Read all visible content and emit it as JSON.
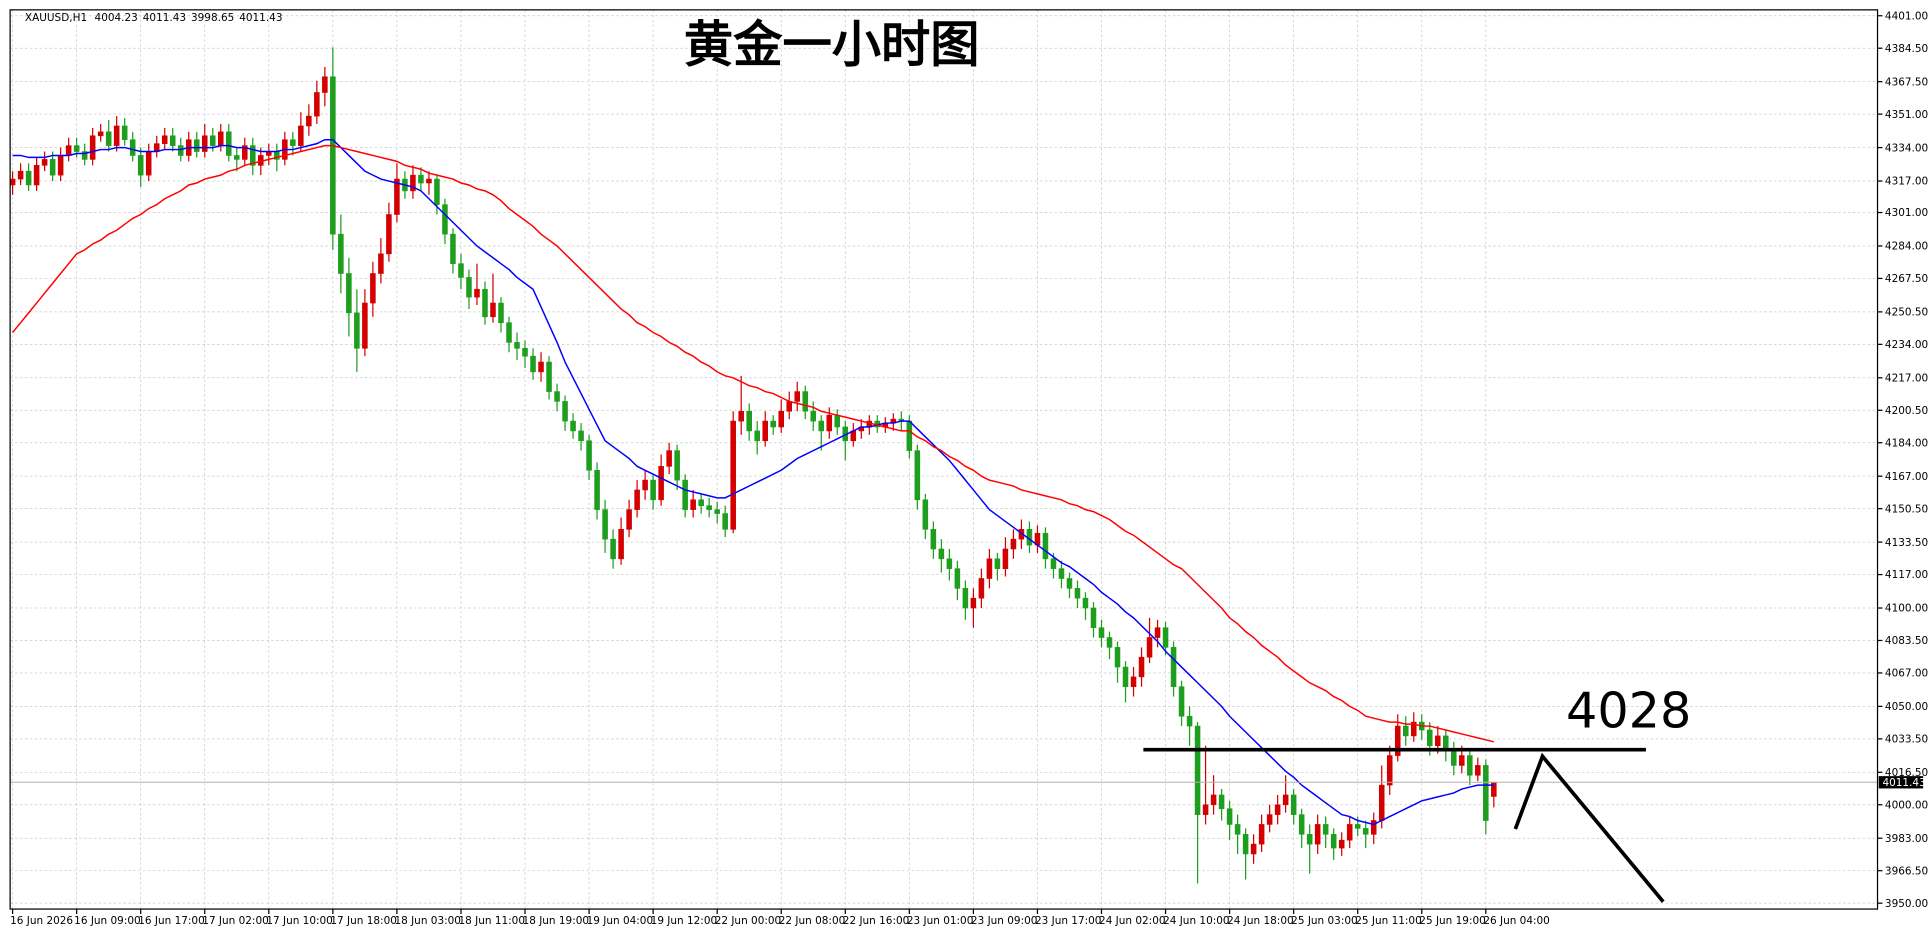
{
  "chart_data": {
    "type": "candlestick",
    "title": "黄金一小时图",
    "symbol": "XAUUSD,H1",
    "categories": [
      "16 Jun 2026",
      null,
      null,
      null,
      null,
      null,
      null,
      null,
      "16 Jun 09:00",
      null,
      null,
      null,
      null,
      null,
      null,
      null,
      "16 Jun 17:00",
      null,
      null,
      null,
      null,
      null,
      null,
      null,
      "17 Jun 02:00",
      null,
      null,
      null,
      null,
      null,
      null,
      null,
      "17 Jun 10:00",
      null,
      null,
      null,
      null,
      null,
      null,
      null,
      "17 Jun 18:00",
      null,
      null,
      null,
      null,
      null,
      null,
      null,
      "18 Jun 03:00",
      null,
      null,
      null,
      null,
      null,
      null,
      null,
      "18 Jun 11:00",
      null,
      null,
      null,
      null,
      null,
      null,
      null,
      "18 Jun 19:00",
      null,
      null,
      null,
      null,
      null,
      null,
      null,
      "19 Jun 04:00",
      null,
      null,
      null,
      null,
      null,
      null,
      null,
      "19 Jun 12:00",
      null,
      null,
      null,
      null,
      null,
      null,
      null,
      "22 Jun 00:00",
      null,
      null,
      null,
      null,
      null,
      null,
      null,
      "22 Jun 08:00",
      null,
      null,
      null,
      null,
      null,
      null,
      null,
      "22 Jun 16:00",
      null,
      null,
      null,
      null,
      null,
      null,
      null,
      "23 Jun 01:00",
      null,
      null,
      null,
      null,
      null,
      null,
      null,
      "23 Jun 09:00",
      null,
      null,
      null,
      null,
      null,
      null,
      null,
      "23 Jun 17:00",
      null,
      null,
      null,
      null,
      null,
      null,
      null,
      "24 Jun 02:00",
      null,
      null,
      null,
      null,
      null,
      null,
      null,
      "24 Jun 10:00",
      null,
      null,
      null,
      null,
      null,
      null,
      null,
      "24 Jun 18:00",
      null,
      null,
      null,
      null,
      null,
      null,
      null,
      "25 Jun 03:00",
      null,
      null,
      null,
      null,
      null,
      null,
      null,
      "25 Jun 11:00",
      null,
      null,
      null,
      null,
      null,
      null,
      null,
      "25 Jun 19:00",
      null,
      null,
      null,
      null,
      null,
      null,
      null,
      "26 Jun 04:00",
      null
    ],
    "open": [
      4315,
      4318,
      4322,
      4315,
      4325,
      4328,
      4320,
      4330,
      4335,
      4332,
      4328,
      4340,
      4342,
      4335,
      4345,
      4338,
      4330,
      4320,
      4332,
      4336,
      4340,
      4335,
      4330,
      4338,
      4332,
      4340,
      4335,
      4342,
      4330,
      4328,
      4335,
      4325,
      4330,
      4332,
      4328,
      4338,
      4335,
      4345,
      4350,
      4362,
      4370,
      4290,
      4270,
      4250,
      4232,
      4255,
      4270,
      4280,
      4300,
      4318,
      4312,
      4320,
      4316,
      4318,
      4305,
      4290,
      4275,
      4268,
      4258,
      4262,
      4248,
      4255,
      4245,
      4235,
      4232,
      4228,
      4220,
      4225,
      4210,
      4205,
      4195,
      4190,
      4185,
      4170,
      4150,
      4135,
      4125,
      4140,
      4150,
      4160,
      4165,
      4155,
      4172,
      4180,
      4165,
      4150,
      4155,
      4152,
      4150,
      4148,
      4140,
      4195,
      4200,
      4190,
      4185,
      4195,
      4192,
      4200,
      4205,
      4210,
      4200,
      4195,
      4190,
      4198,
      4192,
      4185,
      4190,
      4192,
      4195,
      4192,
      4194,
      4196,
      4195,
      4180,
      4155,
      4140,
      4130,
      4125,
      4120,
      4110,
      4100,
      4105,
      4115,
      4125,
      4120,
      4130,
      4135,
      4140,
      4132,
      4138,
      4125,
      4120,
      4115,
      4110,
      4105,
      4100,
      4090,
      4085,
      4080,
      4070,
      4060,
      4065,
      4075,
      4085,
      4090,
      4080,
      4060,
      4045,
      4040,
      3995,
      4000,
      4005,
      3998,
      3990,
      3985,
      3975,
      3980,
      3990,
      3995,
      4000,
      4005,
      3995,
      3985,
      3980,
      3990,
      3985,
      3978,
      3982,
      3990,
      3988,
      3985,
      3992,
      4010,
      4025,
      4040,
      4035,
      4042,
      4038,
      4030,
      4035,
      4028,
      4020,
      4025,
      4015,
      4020,
      4004.23
    ],
    "high": [
      4322,
      4326,
      4326,
      4329,
      4332,
      4332,
      4334,
      4339,
      4339,
      4336,
      4344,
      4346,
      4348,
      4350,
      4349,
      4342,
      4334,
      4336,
      4340,
      4344,
      4344,
      4339,
      4342,
      4342,
      4346,
      4344,
      4346,
      4346,
      4334,
      4339,
      4339,
      4334,
      4336,
      4336,
      4342,
      4342,
      4352,
      4356,
      4368,
      4375,
      4385,
      4300,
      4278,
      4262,
      4262,
      4276,
      4288,
      4306,
      4326,
      4322,
      4325,
      4324,
      4322,
      4320,
      4308,
      4293,
      4280,
      4272,
      4275,
      4266,
      4270,
      4258,
      4248,
      4240,
      4236,
      4232,
      4230,
      4228,
      4214,
      4208,
      4199,
      4194,
      4188,
      4174,
      4155,
      4140,
      4146,
      4155,
      4165,
      4170,
      4168,
      4178,
      4184,
      4183,
      4168,
      4160,
      4158,
      4156,
      4154,
      4152,
      4200,
      4218,
      4204,
      4195,
      4200,
      4198,
      4206,
      4210,
      4215,
      4213,
      4205,
      4198,
      4202,
      4201,
      4195,
      4194,
      4196,
      4198,
      4198,
      4197,
      4199,
      4200,
      4198,
      4183,
      4158,
      4144,
      4135,
      4130,
      4124,
      4114,
      4110,
      4120,
      4130,
      4128,
      4136,
      4140,
      4145,
      4144,
      4142,
      4141,
      4128,
      4124,
      4118,
      4114,
      4108,
      4103,
      4094,
      4088,
      4083,
      4073,
      4070,
      4080,
      4095,
      4094,
      4093,
      4083,
      4063,
      4050,
      4042,
      4030,
      4015,
      4008,
      4002,
      3995,
      3988,
      3985,
      3995,
      4000,
      4005,
      4015,
      4008,
      3998,
      3990,
      3995,
      3994,
      3988,
      3986,
      3994,
      3994,
      3992,
      3996,
      4020,
      4030,
      4046,
      4045,
      4047,
      4046,
      4042,
      4040,
      4038,
      4032,
      4030,
      4028,
      4024,
      4023,
      4011.43
    ],
    "low": [
      4310,
      4315,
      4312,
      4312,
      4322,
      4317,
      4317,
      4327,
      4329,
      4325,
      4325,
      4337,
      4332,
      4332,
      4335,
      4327,
      4314,
      4317,
      4329,
      4333,
      4332,
      4327,
      4327,
      4329,
      4329,
      4332,
      4332,
      4327,
      4322,
      4325,
      4320,
      4320,
      4325,
      4322,
      4325,
      4330,
      4332,
      4340,
      4346,
      4355,
      4282,
      4260,
      4238,
      4220,
      4228,
      4248,
      4265,
      4276,
      4296,
      4308,
      4308,
      4312,
      4310,
      4300,
      4285,
      4270,
      4262,
      4252,
      4254,
      4244,
      4245,
      4240,
      4230,
      4226,
      4222,
      4216,
      4215,
      4206,
      4200,
      4190,
      4186,
      4180,
      4165,
      4145,
      4128,
      4120,
      4122,
      4136,
      4146,
      4155,
      4150,
      4152,
      4168,
      4160,
      4146,
      4146,
      4148,
      4146,
      4143,
      4136,
      4138,
      4188,
      4185,
      4178,
      4182,
      4188,
      4189,
      4196,
      4200,
      4196,
      4190,
      4180,
      4186,
      4188,
      4175,
      4182,
      4186,
      4188,
      4189,
      4189,
      4190,
      4190,
      4176,
      4150,
      4135,
      4125,
      4118,
      4114,
      4104,
      4094,
      4090,
      4100,
      4110,
      4114,
      4116,
      4125,
      4130,
      4128,
      4128,
      4120,
      4115,
      4110,
      4105,
      4100,
      4094,
      4085,
      4080,
      4074,
      4062,
      4052,
      4055,
      4060,
      4072,
      4080,
      4076,
      4055,
      4040,
      4030,
      3960,
      3990,
      3995,
      3992,
      3982,
      3975,
      3962,
      3970,
      3976,
      3986,
      3990,
      3996,
      3990,
      3978,
      3965,
      3975,
      3978,
      3972,
      3974,
      3978,
      3984,
      3978,
      3980,
      3988,
      4005,
      4022,
      4030,
      4032,
      4033,
      4025,
      4026,
      4022,
      4015,
      4016,
      4010,
      4012,
      3985,
      3998.65
    ],
    "close": [
      4318,
      4322,
      4315,
      4325,
      4328,
      4320,
      4330,
      4335,
      4332,
      4328,
      4340,
      4342,
      4335,
      4345,
      4338,
      4330,
      4320,
      4332,
      4336,
      4340,
      4335,
      4330,
      4338,
      4332,
      4340,
      4335,
      4342,
      4330,
      4328,
      4335,
      4325,
      4330,
      4332,
      4328,
      4338,
      4335,
      4345,
      4350,
      4362,
      4370,
      4290,
      4270,
      4250,
      4232,
      4255,
      4270,
      4280,
      4300,
      4318,
      4312,
      4320,
      4316,
      4318,
      4305,
      4290,
      4275,
      4268,
      4258,
      4262,
      4248,
      4255,
      4245,
      4235,
      4232,
      4228,
      4220,
      4225,
      4210,
      4205,
      4195,
      4190,
      4185,
      4170,
      4150,
      4135,
      4125,
      4140,
      4150,
      4160,
      4165,
      4155,
      4172,
      4180,
      4165,
      4150,
      4155,
      4152,
      4150,
      4148,
      4140,
      4195,
      4200,
      4190,
      4185,
      4195,
      4192,
      4200,
      4205,
      4210,
      4200,
      4195,
      4190,
      4198,
      4192,
      4185,
      4190,
      4192,
      4195,
      4192,
      4194,
      4196,
      4195,
      4180,
      4155,
      4140,
      4130,
      4125,
      4120,
      4110,
      4100,
      4105,
      4115,
      4125,
      4120,
      4130,
      4135,
      4140,
      4132,
      4138,
      4125,
      4120,
      4115,
      4110,
      4105,
      4100,
      4090,
      4085,
      4080,
      4070,
      4060,
      4065,
      4075,
      4085,
      4090,
      4080,
      4060,
      4045,
      4040,
      3995,
      4000,
      4005,
      3998,
      3990,
      3985,
      3975,
      3980,
      3990,
      3995,
      4000,
      4005,
      3995,
      3985,
      3980,
      3990,
      3985,
      3978,
      3982,
      3990,
      3988,
      3985,
      3992,
      4010,
      4025,
      4040,
      4035,
      4042,
      4038,
      4030,
      4035,
      4028,
      4020,
      4025,
      4015,
      4020,
      3992,
      4011.43
    ],
    "up_color": "#d40000",
    "down_color": "#1e9e1e",
    "lines": [
      {
        "color": "#0000ff",
        "values": [
          4330,
          4330,
          4329,
          4329,
          4329,
          4330,
          4330,
          4330,
          4331,
          4331,
          4332,
          4333,
          4333,
          4334,
          4334,
          4333,
          4332,
          4332,
          4332,
          4333,
          4333,
          4333,
          4334,
          4334,
          4334,
          4334,
          4335,
          4335,
          4334,
          4334,
          4333,
          4332,
          4332,
          4332,
          4333,
          4333,
          4334,
          4335,
          4336,
          4338,
          4338,
          4334,
          4330,
          4326,
          4322,
          4320,
          4318,
          4317,
          4316,
          4315,
          4314,
          4312,
          4308,
          4304,
          4300,
          4296,
          4292,
          4288,
          4284,
          4281,
          4278,
          4275,
          4272,
          4268,
          4265,
          4262,
          4253,
          4244,
          4235,
          4225,
          4217,
          4209,
          4201,
          4193,
          4185,
          4182,
          4179,
          4176,
          4172,
          4170,
          4168,
          4166,
          4164,
          4162,
          4160,
          4159,
          4158,
          4157,
          4156,
          4156,
          4158,
          4160,
          4162,
          4164,
          4166,
          4168,
          4170,
          4173,
          4176,
          4178,
          4180,
          4182,
          4184,
          4186,
          4188,
          4190,
          4192,
          4192,
          4193,
          4194,
          4194,
          4195,
          4195,
          4191,
          4187,
          4183,
          4179,
          4175,
          4170,
          4165,
          4160,
          4155,
          4150,
          4147,
          4144,
          4141,
          4138,
          4135,
          4132,
          4129,
          4126,
          4123,
          4121,
          4118,
          4115,
          4112,
          4108,
          4105,
          4102,
          4098,
          4095,
          4091,
          4087,
          4083,
          4078,
          4074,
          4070,
          4066,
          4062,
          4058,
          4054,
          4050,
          4045,
          4041,
          4037,
          4033,
          4029,
          4025,
          4021,
          4017,
          4014,
          4010,
          4007,
          4004,
          4001,
          3998,
          3995,
          3994,
          3992,
          3991,
          3990,
          3992,
          3994,
          3996,
          3998,
          4000,
          4002,
          4003,
          4004,
          4005,
          4006,
          4008,
          4009,
          4010,
          4010,
          4010
        ]
      },
      {
        "color": "#ff0000",
        "values": [
          4240,
          4245,
          4250,
          4255,
          4260,
          4265,
          4270,
          4275,
          4280,
          4282,
          4285,
          4287,
          4290,
          4292,
          4295,
          4298,
          4300,
          4303,
          4305,
          4308,
          4310,
          4312,
          4315,
          4316,
          4318,
          4319,
          4320,
          4322,
          4323,
          4325,
          4326,
          4327,
          4328,
          4329,
          4330,
          4331,
          4332,
          4333,
          4334,
          4335,
          4335,
          4334,
          4333,
          4332,
          4331,
          4330,
          4329,
          4328,
          4327,
          4325,
          4324,
          4323,
          4321,
          4320,
          4319,
          4318,
          4316,
          4315,
          4313,
          4312,
          4310,
          4307,
          4303,
          4300,
          4297,
          4294,
          4290,
          4287,
          4284,
          4280,
          4276,
          4272,
          4268,
          4264,
          4260,
          4256,
          4252,
          4249,
          4245,
          4243,
          4240,
          4238,
          4235,
          4233,
          4230,
          4228,
          4225,
          4223,
          4220,
          4218,
          4217,
          4215,
          4213,
          4212,
          4210,
          4209,
          4207,
          4205,
          4204,
          4203,
          4202,
          4200,
          4199,
          4198,
          4197,
          4196,
          4195,
          4194,
          4193,
          4192,
          4191,
          4190,
          4190,
          4187,
          4185,
          4182,
          4180,
          4177,
          4175,
          4172,
          4170,
          4167,
          4165,
          4164,
          4163,
          4162,
          4160,
          4159,
          4158,
          4157,
          4156,
          4155,
          4153,
          4152,
          4150,
          4149,
          4147,
          4145,
          4142,
          4139,
          4137,
          4134,
          4131,
          4128,
          4125,
          4122,
          4120,
          4116,
          4112,
          4108,
          4104,
          4100,
          4095,
          4092,
          4088,
          4085,
          4081,
          4078,
          4075,
          4071,
          4068,
          4065,
          4062,
          4060,
          4058,
          4055,
          4053,
          4050,
          4048,
          4045,
          4044,
          4043,
          4042,
          4042,
          4041,
          4041,
          4040,
          4040,
          4039,
          4038,
          4037,
          4036,
          4035,
          4034,
          4033,
          4032
        ]
      }
    ],
    "level": 4028,
    "ylim": [
      3947,
      4404
    ],
    "yticks": [
      {
        "value": 4401,
        "label": "4401.00"
      },
      {
        "value": 4384.5,
        "label": "4384.50"
      },
      {
        "value": 4367.5,
        "label": "4367.50"
      },
      {
        "value": 4351,
        "label": "4351.00"
      },
      {
        "value": 4334,
        "label": "4334.00"
      },
      {
        "value": 4317,
        "label": "4317.00"
      },
      {
        "value": 4301,
        "label": "4301.00"
      },
      {
        "value": 4284,
        "label": "4284.00"
      },
      {
        "value": 4267.5,
        "label": "4267.50"
      },
      {
        "value": 4250.5,
        "label": "4250.50"
      },
      {
        "value": 4234,
        "label": "4234.00"
      },
      {
        "value": 4217,
        "label": "4217.00"
      },
      {
        "value": 4200.5,
        "label": "4200.50"
      },
      {
        "value": 4184,
        "label": "4184.00"
      },
      {
        "value": 4167,
        "label": "4167.00"
      },
      {
        "value": 4150.5,
        "label": "4150.50"
      },
      {
        "value": 4133.5,
        "label": "4133.50"
      },
      {
        "value": 4117,
        "label": "4117.00"
      },
      {
        "value": 4100,
        "label": "4100.00"
      },
      {
        "value": 4083.5,
        "label": "4083.50"
      },
      {
        "value": 4067,
        "label": "4067.00"
      },
      {
        "value": 4050,
        "label": "4050.00"
      },
      {
        "value": 4033.5,
        "label": "4033.50"
      },
      {
        "value": 4016.5,
        "label": "4016.50"
      },
      {
        "value": 4000,
        "label": "4000.00"
      },
      {
        "value": 3983,
        "label": "3983.00"
      },
      {
        "value": 3966.5,
        "label": "3966.50"
      },
      {
        "value": 3950,
        "label": "3950.00"
      }
    ],
    "grid": true
  }
}
